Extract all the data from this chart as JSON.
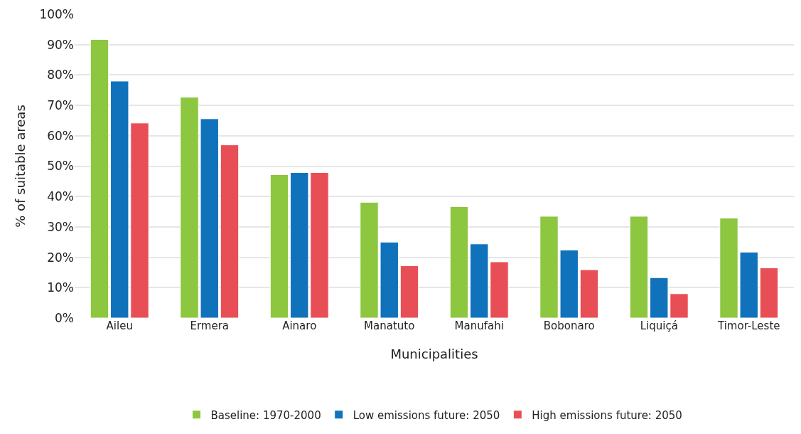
{
  "chart_data": {
    "type": "bar",
    "xlabel": "Municipalities",
    "ylabel": "% of suitable areas",
    "categories": [
      "Aileu",
      "Ermera",
      "Ainaro",
      "Manatuto",
      "Manufahi",
      "Bobonaro",
      "Liquiçá",
      "Timor-Leste"
    ],
    "series": [
      {
        "name": "Baseline: 1970-2000",
        "color": "#8dc63f",
        "values": [
          91.7,
          72.7,
          47.2,
          38.1,
          36.7,
          33.5,
          33.5,
          32.9
        ]
      },
      {
        "name": "Low emissions future: 2050",
        "color": "#1072bb",
        "values": [
          78.0,
          65.6,
          47.9,
          25.0,
          24.4,
          22.4,
          13.3,
          21.7
        ]
      },
      {
        "name": "High emissions future: 2050",
        "color": "#e84e55",
        "values": [
          64.2,
          57.0,
          47.9,
          17.2,
          18.5,
          15.9,
          8.0,
          16.5
        ]
      }
    ],
    "ylim": [
      0,
      100
    ],
    "yticks": [
      {
        "value": 0,
        "label": "0%"
      },
      {
        "value": 10,
        "label": "10%"
      },
      {
        "value": 20,
        "label": "20%"
      },
      {
        "value": 30,
        "label": "30%"
      },
      {
        "value": 40,
        "label": "40%"
      },
      {
        "value": 50,
        "label": "50%"
      },
      {
        "value": 60,
        "label": "60%"
      },
      {
        "value": 70,
        "label": "70%"
      },
      {
        "value": 80,
        "label": "80%"
      },
      {
        "value": 90,
        "label": "90%"
      },
      {
        "value": 100,
        "label": "100%"
      }
    ],
    "grid": "y",
    "legend": "bottom"
  }
}
